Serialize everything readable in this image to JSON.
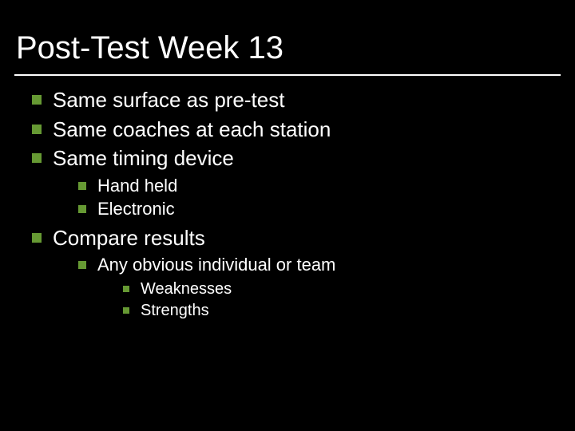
{
  "colors": {
    "background": "#000000",
    "text": "#ffffff",
    "rule": "#ffffff",
    "bullet": "#669933"
  },
  "typography": {
    "title_fontsize": 40,
    "lvl1_fontsize": 26,
    "lvl2_fontsize": 22,
    "lvl3_fontsize": 20,
    "font_family": "Arial"
  },
  "title": "Post-Test Week 13",
  "bullets": [
    {
      "text": "Same surface as pre-test"
    },
    {
      "text": "Same coaches at each station"
    },
    {
      "text": "Same timing device",
      "children": [
        {
          "text": "Hand held"
        },
        {
          "text": "Electronic"
        }
      ]
    },
    {
      "text": "Compare results",
      "children": [
        {
          "text": "Any obvious individual or team",
          "children": [
            {
              "text": "Weaknesses"
            },
            {
              "text": "Strengths"
            }
          ]
        }
      ]
    }
  ]
}
